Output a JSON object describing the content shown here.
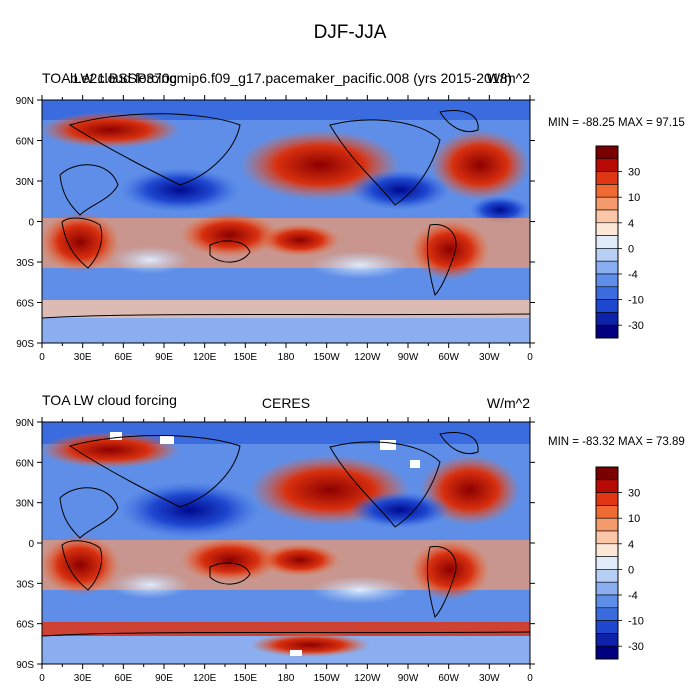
{
  "figure": {
    "title": "DJF-JJA"
  },
  "panels": [
    {
      "left_title": "TOA LW cloud forcing",
      "center_title": "b.e21.BSSP370cmip6.f09_g17.pacemaker_pacific.008 (yrs 2015-2018)",
      "right_title": "W/m^2",
      "stats": "MIN = -88.25 MAX =  97.15"
    },
    {
      "left_title": "TOA LW cloud forcing",
      "center_title": "CERES",
      "right_title": "W/m^2",
      "stats": "MIN = -83.32 MAX =  73.89"
    }
  ],
  "map_axes": {
    "lon_ticks": [
      "0",
      "30E",
      "60E",
      "90E",
      "120E",
      "150E",
      "180",
      "150W",
      "120W",
      "90W",
      "60W",
      "30W",
      "0"
    ],
    "lat_ticks": [
      "90N",
      "60N",
      "30N",
      "0",
      "30S",
      "60S",
      "90S"
    ]
  },
  "colorbar": {
    "labels": [
      "30",
      "10",
      "4",
      "0",
      "-4",
      "-10",
      "-30"
    ],
    "colors": [
      "#7a0000",
      "#b80b05",
      "#e03512",
      "#f06a33",
      "#f59a6a",
      "#fbc7a8",
      "#fde7d7",
      "#e0ecfa",
      "#b8cff5",
      "#8aaef0",
      "#5e8ee8",
      "#3a6ce0",
      "#1e48d0",
      "#0c22a8",
      "#000080"
    ]
  }
}
